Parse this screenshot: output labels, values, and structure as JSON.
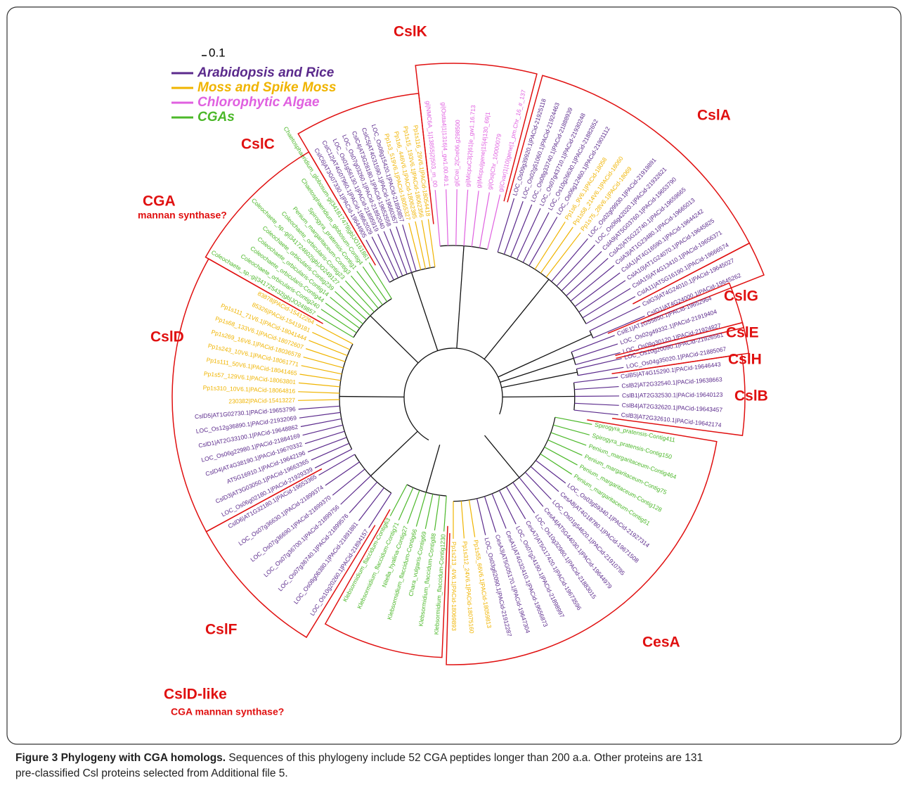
{
  "scale_label": "0.1",
  "legend": [
    {
      "label": "Arabidopsis and Rice",
      "color": "#5b2a8c"
    },
    {
      "label": "Moss and Spike Moss",
      "color": "#f0b400"
    },
    {
      "label": "Chlorophytic Algae",
      "color": "#e060e0"
    },
    {
      "label": "CGAs",
      "color": "#4cb82a"
    }
  ],
  "clades": [
    {
      "name": "CslA",
      "groups": [
        {
          "color": "#5b2a8c",
          "leaves": [
            "LOC_Os09g39920.1|PACid-21925118",
            "LOC_Os02g51060.1|PACid-21924463",
            "LOC_Os08g33740.1|PACid-21888939",
            "LOC_Os07g43710.1|PACid-21930248",
            "LOC_Os10g26630.1|PACid-21882652",
            "LOC_Os06g12460.1|PACid-21901112"
          ]
        },
        {
          "color": "#f0b400",
          "leaves": [
            "Pp1s6_9V6.1|PACid-18058",
            "Pp1s58_214V6.1|PACid-18060",
            "Pp1s75_28V6.1|PACid-18069"
          ]
        },
        {
          "color": "#5b2a8c",
          "leaves": [
            "LOC_Os02g09930.1|PACid-21919891",
            "LOC_Os06g42020.1|PACid-21932621",
            "CslA9|AT5G03760.1|PACid-19653790",
            "CslA2|AT5G22740.1|PACid-19659665",
            "CslA3|AT1G23480.1|PACid-19665013",
            "CslA1|AT4G16590.1|PACid-19644242",
            "CslA10|AT1G24070.1|PACid-19645825",
            "CslA15|AT4G13410.1|PACid-19656371",
            "CslA11|AT5G16190.1|PACid-19666574"
          ]
        }
      ]
    },
    {
      "name": "CslG",
      "groups": [
        {
          "color": "#5b2a8c",
          "leaves": [
            "CslG3|AT4G24010.1|PACid-19645027",
            "CslG1|AT4G24000.1|PACid-19645262"
          ]
        }
      ]
    },
    {
      "name": "CslE",
      "groups": [
        {
          "color": "#5b2a8c",
          "leaves": [
            "CslE1|AT1G55850.1|PACid-19652964",
            "LOC_Os02g49332.1|PACid-21919404",
            "LOC_Os09g30120.1|PACid-21924827"
          ]
        }
      ]
    },
    {
      "name": "CslH",
      "groups": [
        {
          "color": "#5b2a8c",
          "leaves": [
            "LOC_Os10g20090.1|PACid-21926561",
            "LOC_Os04g35020.1|PACid-21885067"
          ]
        }
      ]
    },
    {
      "name": "CslB",
      "groups": [
        {
          "color": "#5b2a8c",
          "leaves": [
            "CslB5|AT4G15290.1|PACid-19646443",
            "CslB2|AT2G32540.1|PACid-19638663",
            "CslB1|AT2G32530.1|PACid-19640123",
            "CslB4|AT2G32620.1|PACid-19643457",
            "CslB3|AT2G32610.1|PACid-19642174"
          ]
        }
      ]
    },
    {
      "name": "CesA",
      "groups": [
        {
          "color": "#4cb82a",
          "leaves": [
            "Spirogyra_pratensis-Contig411",
            "Spirogyra_pratensis-Contig150",
            "Penium_margaritaceum-Contig464",
            "Penium_margaritaceum-Contig75",
            "Penium_margaritaceum-Contig128",
            "Penium_margaritaceum-Contig51"
          ]
        },
        {
          "color": "#5b2a8c",
          "leaves": [
            "LOC_Os03g59340.1|PACid-21927314",
            "CesA8|AT4G18780.1|PACid-19671508",
            "LOC_Os01g54620.1|PACid-21910795",
            "CesA4|AT5G44030.1|PACid-19644979",
            "LOC_Os10g32980.1|PACid-21883015",
            "CesA7|AT5G17420.1|PACid-19673596",
            "LOC_Os07g24190.1|PACid-21898997",
            "CesA1|AT4G32410.1|PACid-19656873",
            "CesA3|AT5G05170.1|PACid-19647304",
            "LOC_Os03g62090.1|PACid-21912287"
          ]
        },
        {
          "color": "#f0b400",
          "leaves": [
            "Pp1s55_66V6.1|PACid-18059813",
            "Pp1s312_24V6.1|PACid-18075160",
            "Pp1s213_4V6.1|PACid-18069893"
          ]
        }
      ]
    },
    {
      "name": "CslD-like",
      "subtitle": "CGA mannan synthase?",
      "groups": [
        {
          "color": "#4cb82a",
          "leaves": [
            "Klebsormidium_flaccidum-Contig1230",
            "Klebsormidium_flaccidum-Contig88",
            "Chara_vulgaris-Contig69",
            "Klebsormidium_flaccidum-Contig66",
            "Nitella_hyalina-Contig27",
            "Klebsormidium_flaccidum-Contig71",
            "Klebsormidium_flaccidum-Contig63"
          ]
        }
      ]
    },
    {
      "name": "CslF",
      "groups": [
        {
          "color": "#5b2a8c",
          "leaves": [
            "LOC_Os10g20260.1|PACid-21894157",
            "LOC_Os08g06380.1|PACid-21891881",
            "LOC_Os07g36740.1|PACid-21899576",
            "LOC_Os07g36700.1|PACid-21899756",
            "LOC_Os07g36690.1|PACid-21899370",
            "LOC_Os07g36630.1|PACid-21899374",
            "CslD6|AT1G32180.1|PACid-19653365"
          ]
        }
      ]
    },
    {
      "name": "CslD",
      "groups": [
        {
          "color": "#5b2a8c",
          "leaves": [
            "LOC_Os06g02180.1|PACid-21929339",
            "CslD3|AT3G03050.1|PACid-19663365",
            "AT5G16910.1|PACid-19642196",
            "CslD4|AT4G38190.1|PACid-19670332",
            "LOC_Os06g22980.1|PACid-21884169",
            "CslD1|AT2G33100.1|PACid-19648862",
            "LOC_Os12g36890.1|PACid-21932069",
            "CslD5|AT1G02730.1|PACid-19653796"
          ]
        },
        {
          "color": "#f0b400",
          "leaves": [
            "230382|PACid-15413227",
            "Pp1s310_10V6.1|PACid-18064816",
            "Pp1s57_129V6.1|PACid-18063801",
            "Pp1s111_50V6.1|PACid-18041465",
            "Pp1s243_10V6.1|PACid-18061771",
            "Pp1s269_16V6.1|PACid-18036578",
            "Pp1s68_133V6.1|PACid-18072607",
            "Pp1s111_71V6.1|PACid-18041444",
            "85326|PACid-15419181",
            "83878|PACid-15412264"
          ]
        }
      ]
    },
    {
      "name": "CGA",
      "subtitle": "mannan synthase?",
      "groups": [
        {
          "color": "#4cb82a",
          "leaves": [
            "Coleochaete_sp.-gi|341725432|gb|JO249857",
            "Coleochaete_orbicularis-Contig240",
            "Coleochaete_orbicularis-Contig44",
            "Coleochaete_orbicularis-Contig14",
            "Coleochaete_orbicularis-Contig239",
            "Coleochaete_sp.-gi|341724602|gb|JO249127",
            "Coleochaete_orbicularis-Contig23",
            "Penium_margaritaceum-Contig3",
            "Spirogyra_pratensis-Contig1",
            "Chaetosphaeridium_globosum-Contig4",
            "Chaetosphaeridium_globosum-gi|341817479|gb|JO161861"
          ]
        }
      ]
    },
    {
      "name": "CslC",
      "groups": [
        {
          "color": "#5b2a8c",
          "leaves": [
            "CslC6|AT3G07330.1|PACid-19644905",
            "CslC12|AT4G07960.1|PACid-19662029",
            "LOC_Os01g56130.1|PACid-21895919",
            "LOC_Os07g03260.1|PACid-21892040",
            "CslC4|AT3G28180.1|PACid-19652558",
            "CslC5|AT4G31590.1|PACid-19660357",
            "LOC_Os08g15420.1|PACid-21890857"
          ]
        },
        {
          "color": "#f0b400",
          "leaves": [
            "Pp1s3_519V6.1|PACid-18055327",
            "Pp1s6_446V6.1|PACid-18062385",
            "Pp1s15_193V6.1|PACid-18062356",
            "Pp1s116_29V6.1|PACid-18054418"
          ]
        }
      ]
    },
    {
      "name": "CslK",
      "groups": [
        {
          "color": "#e060e0",
          "leaves": [
            "gi|NMC6A_1|13855|2|503_m_00",
            "gi|Ostta4|1|1316|4_gw1.00.49.1",
            "gi|Crei_2|Cre06.g298500",
            "gi|MicpuC3|2|61|e_gw1.16.713",
            "gi|Micpu|gene|15|4|130_69|1",
            "gi|Ost|Chr_10000079",
            "gi|Cvar|1|10|gene|1_pm.Chr_16_#_137"
          ]
        }
      ]
    }
  ],
  "caption": {
    "title": "Figure 3 Phylogeny with CGA homologs.",
    "text": "Sequences of this phylogeny include 52 CGA peptides longer than 200 a.a. Other proteins are 131 pre-classified Csl proteins selected from Additional file 5."
  }
}
